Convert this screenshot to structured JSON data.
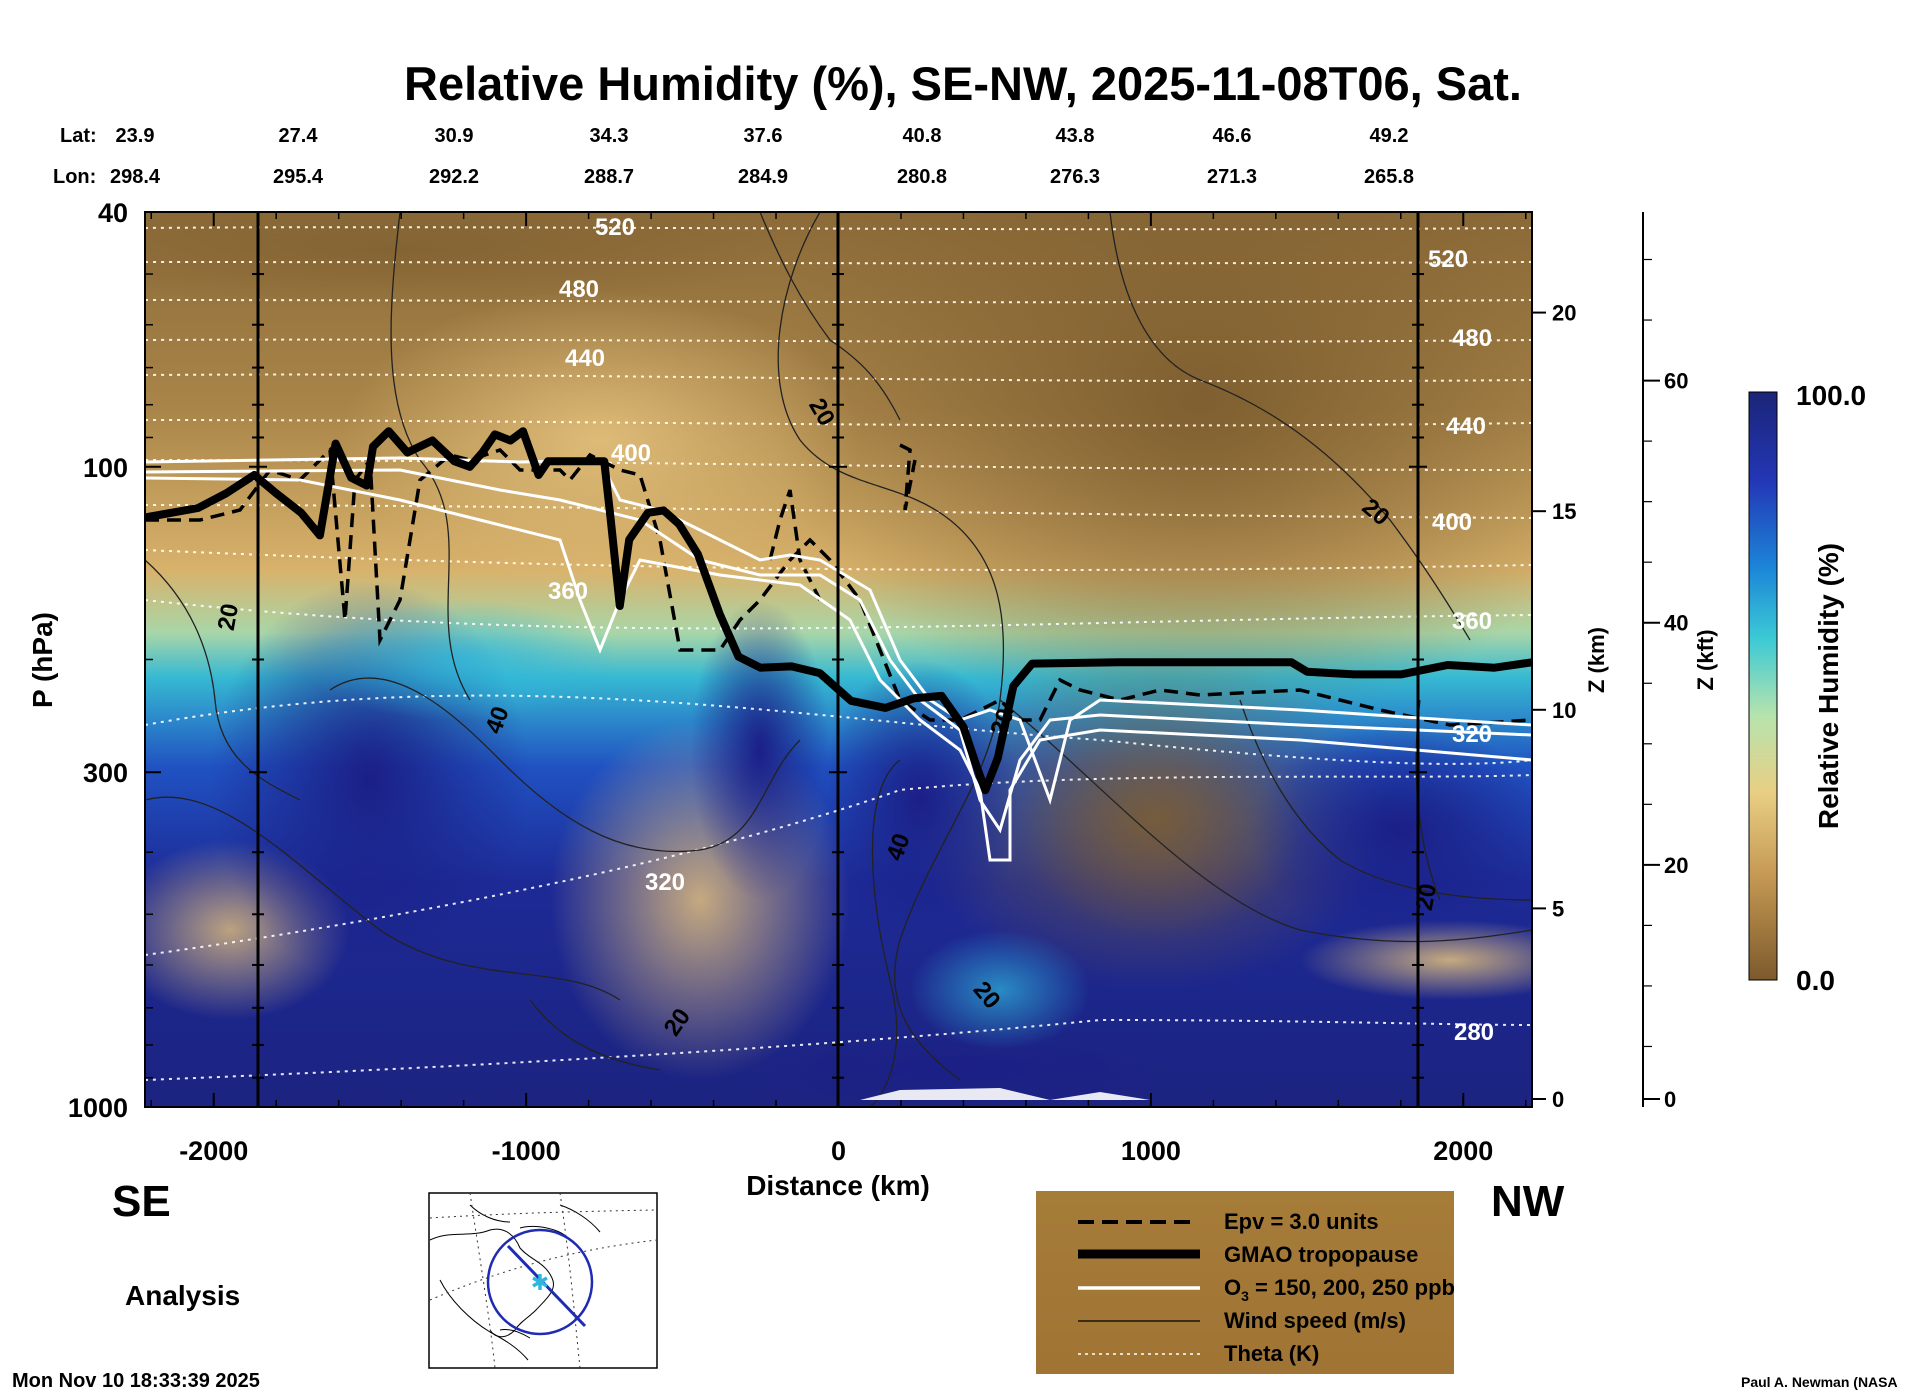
{
  "chart_data": {
    "type": "heatmap",
    "title": "Relative Humidity (%), SE-NW, 2025-11-08T06, Sat.",
    "xlabel": "Distance (km)",
    "ylabel": "P (hPa)",
    "right_axis_1_label": "Z (km)",
    "right_axis_2_label": "Z (kft)",
    "colorbar_label": "Relative Humidity (%)",
    "colorbar_max_label": "100.0",
    "colorbar_min_label": "0.0",
    "colorbar_range": [
      0,
      100
    ],
    "xlim": [
      -2220,
      2220
    ],
    "ylim_hpa": [
      1000,
      40
    ],
    "y_scale": "log",
    "x_ticks": [
      "-2000",
      "-1000",
      "0",
      "1000",
      "2000"
    ],
    "y_ticks": [
      "40",
      "100",
      "300",
      "1000"
    ],
    "z_km_ticks": [
      "20",
      "15",
      "10",
      "5",
      "0"
    ],
    "z_kft_ticks": [
      "60",
      "40",
      "20",
      "0"
    ],
    "lat_label": "Lat:",
    "lon_label": "Lon:",
    "lat": [
      "23.9",
      "27.4",
      "30.9",
      "34.3",
      "37.6",
      "40.8",
      "43.8",
      "46.6",
      "49.2"
    ],
    "lon": [
      "298.4",
      "295.4",
      "292.2",
      "288.7",
      "284.9",
      "280.8",
      "276.3",
      "271.3",
      "265.8"
    ],
    "theta_labels": [
      "520",
      "480",
      "440",
      "400",
      "360",
      "320",
      "280"
    ],
    "wind_labels": [
      "20",
      "40"
    ],
    "tropopause_hpa": [
      [
        -2220,
        120
      ],
      [
        -2050,
        116
      ],
      [
        -1960,
        110
      ],
      [
        -1870,
        103
      ],
      [
        -1800,
        110
      ],
      [
        -1720,
        118
      ],
      [
        -1660,
        128
      ],
      [
        -1610,
        92
      ],
      [
        -1560,
        104
      ],
      [
        -1510,
        107
      ],
      [
        -1490,
        93
      ],
      [
        -1440,
        88
      ],
      [
        -1380,
        95
      ],
      [
        -1300,
        91
      ],
      [
        -1230,
        98
      ],
      [
        -1180,
        100
      ],
      [
        -1140,
        95
      ],
      [
        -1100,
        89
      ],
      [
        -1050,
        91
      ],
      [
        -1010,
        88
      ],
      [
        -960,
        103
      ],
      [
        -930,
        98
      ],
      [
        -870,
        98
      ],
      [
        -750,
        98
      ],
      [
        -730,
        120
      ],
      [
        -700,
        165
      ],
      [
        -670,
        130
      ],
      [
        -610,
        118
      ],
      [
        -560,
        117
      ],
      [
        -510,
        123
      ],
      [
        -450,
        137
      ],
      [
        -380,
        170
      ],
      [
        -320,
        198
      ],
      [
        -250,
        206
      ],
      [
        -150,
        205
      ],
      [
        -60,
        210
      ],
      [
        40,
        232
      ],
      [
        150,
        238
      ],
      [
        240,
        230
      ],
      [
        330,
        228
      ],
      [
        400,
        255
      ],
      [
        440,
        292
      ],
      [
        470,
        320
      ],
      [
        510,
        285
      ],
      [
        560,
        220
      ],
      [
        620,
        203
      ],
      [
        900,
        202
      ],
      [
        1200,
        202
      ],
      [
        1450,
        202
      ],
      [
        1500,
        209
      ],
      [
        1650,
        211
      ],
      [
        1800,
        211
      ],
      [
        1950,
        204
      ],
      [
        2100,
        206
      ],
      [
        2220,
        202
      ]
    ],
    "legend": [
      {
        "style": "dashed",
        "label": "Epv = 3.0 units"
      },
      {
        "style": "thick-black",
        "label": "GMAO tropopause"
      },
      {
        "style": "white",
        "label_main": "O",
        "label_sub": "3",
        "label_rest": " = 150, 200, 250 ppb"
      },
      {
        "style": "thin-black",
        "label": "Wind speed (m/s)"
      },
      {
        "style": "dotted-white",
        "label": "Theta (K)"
      }
    ],
    "se_label": "SE",
    "nw_label": "NW",
    "analysis_label": "Analysis",
    "timestamp": "Mon Nov 10 18:33:39 2025",
    "credit": "Paul A. Newman (NASA"
  },
  "colors": {
    "dry": "#7d5a2a",
    "moist_mid": "#e6c27c",
    "wet": "#1a1f8c",
    "legend_bg": "#a67c39"
  }
}
